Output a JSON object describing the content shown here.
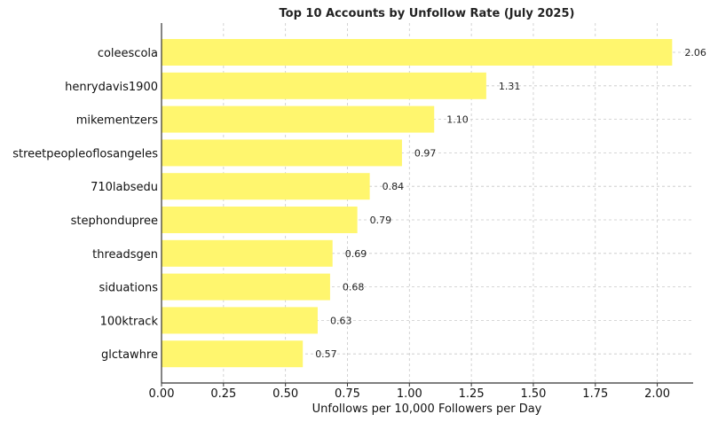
{
  "chart_data": {
    "type": "bar",
    "orientation": "horizontal",
    "title": "Top 10 Accounts by Unfollow Rate (July 2025)",
    "xlabel": "Unfollows per 10,000 Followers per Day",
    "ylabel": "",
    "categories": [
      "coleescola",
      "henrydavis1900",
      "mikementzers",
      "streetpeopleoflosangeles",
      "710labsedu",
      "stephondupree",
      "threadsgen",
      "siduations",
      "100ktrack",
      "glctawhre"
    ],
    "values": [
      2.06,
      1.31,
      1.1,
      0.97,
      0.84,
      0.79,
      0.69,
      0.68,
      0.63,
      0.57
    ],
    "value_labels": [
      "2.06",
      "1.31",
      "1.10",
      "0.97",
      "0.84",
      "0.79",
      "0.69",
      "0.68",
      "0.63",
      "0.57"
    ],
    "xticks": [
      0,
      0.25,
      0.5,
      0.75,
      1.0,
      1.25,
      1.5,
      1.75,
      2.0
    ],
    "xtick_labels": [
      "0.00",
      "0.25",
      "0.50",
      "0.75",
      "1.00",
      "1.25",
      "1.50",
      "1.75",
      "2.00"
    ],
    "xlim": [
      0,
      2.15
    ],
    "grid": true,
    "bar_color": "#fff66e",
    "grid_color": "#c8c8c8",
    "axis_color": "#333333"
  }
}
